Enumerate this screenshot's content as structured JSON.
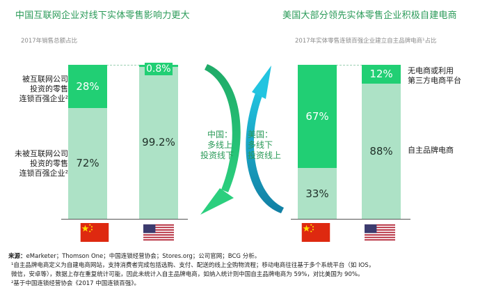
{
  "left_panel": {
    "title": "中国互联网企业对线下实体零售影响力更大",
    "subtitle": "2017年销售总额占比",
    "label_top": [
      "被互联网公司",
      "投资的零售",
      "连锁百强企业²"
    ],
    "label_bottom": [
      "未被互联网公司",
      "投资的零售",
      "连锁百强企业²"
    ]
  },
  "right_panel": {
    "title": "美国大部分领先实体零售企业积极自建电商",
    "subtitle": "2017年实体零售连锁百强企业建立自主品牌电商¹占比",
    "label_top": [
      "无电商或利用",
      "第三方电商平台"
    ],
    "label_bottom": [
      "自主品牌电商"
    ]
  },
  "middle": {
    "china_text": [
      "中国：",
      "多线上",
      "投资线下"
    ],
    "usa_text": [
      "美国：",
      "多线下",
      "投资线上"
    ]
  },
  "chart_data": [
    {
      "type": "bar",
      "stacked": true,
      "title": "中国互联网企业对线下实体零售影响力更大",
      "subtitle": "2017年销售总额占比",
      "categories": [
        "China",
        "USA"
      ],
      "series": [
        {
          "name": "被互联网公司投资的零售连锁百强企业²",
          "values": [
            28,
            0.8
          ],
          "labels": [
            "28%",
            "0.8%"
          ]
        },
        {
          "name": "未被互联网公司投资的零售连锁百强企业²",
          "values": [
            72,
            99.2
          ],
          "labels": [
            "72%",
            "99.2%"
          ]
        }
      ],
      "ylim": [
        0,
        100
      ]
    },
    {
      "type": "bar",
      "stacked": true,
      "title": "美国大部分领先实体零售企业积极自建电商",
      "subtitle": "2017年实体零售连锁百强企业建立自主品牌电商¹占比",
      "categories": [
        "China",
        "USA"
      ],
      "series": [
        {
          "name": "无电商或利用第三方电商平台",
          "values": [
            67,
            12
          ],
          "labels": [
            "67%",
            "12%"
          ]
        },
        {
          "name": "自主品牌电商",
          "values": [
            33,
            88
          ],
          "labels": [
            "33%",
            "88%"
          ]
        }
      ],
      "ylim": [
        0,
        100
      ]
    }
  ],
  "footer": {
    "source_label": "来源：",
    "source_text": "eMarketer；Thomson One；中国连锁经营协会；Stores.org；公司官网；BCG 分析。",
    "note1_line1": "¹自主品牌电商定义为自建电商网站，支持消费者完成包括选购、支付、配送的线上全购物流程；移动电商往往基于多个系统平台（如 IOS，",
    "note1_line2": "微信，安卓等），数据上存在重复统计可能，因此未统计入自主品牌电商，如纳入统计则中国自主品牌电商为 59%，对比美国为 90%。",
    "note2": "²基于中国连锁经营协会《2017 中国连锁百强》。"
  },
  "colors": {
    "top_segment": "#21cf74",
    "bottom_segment": "#ade2c6",
    "title_green": "#2a9a58",
    "arrow_cyan": "#1ab9d6"
  },
  "icons": [
    "china-flag-icon",
    "usa-flag-icon"
  ]
}
